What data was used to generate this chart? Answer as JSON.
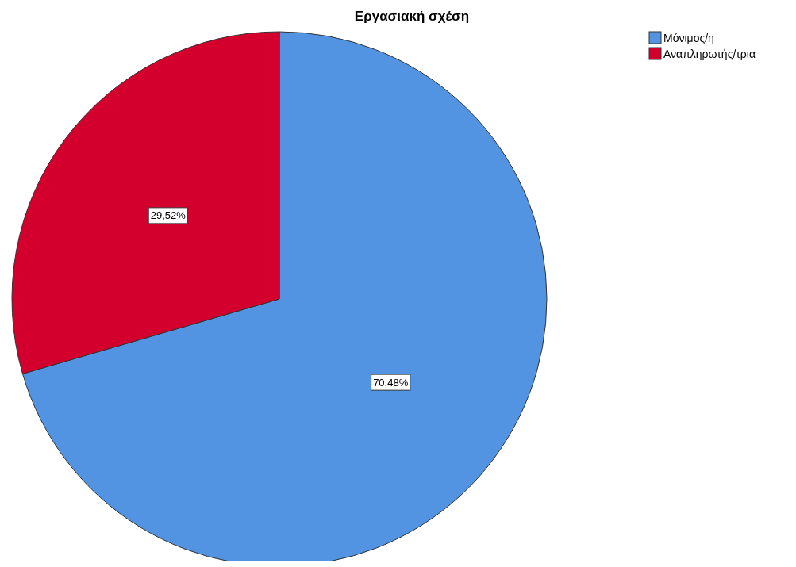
{
  "chart_data": {
    "type": "pie",
    "title": "Εργασιακή σχέση",
    "categories": [
      "Μόνιμος/η",
      "Αναπληρωτής/τρια"
    ],
    "values": [
      70.48,
      29.52
    ],
    "colors": [
      "#5294e2",
      "#d3002d"
    ],
    "value_labels": [
      "70,48%",
      "29,52%"
    ],
    "legend": "top right"
  }
}
